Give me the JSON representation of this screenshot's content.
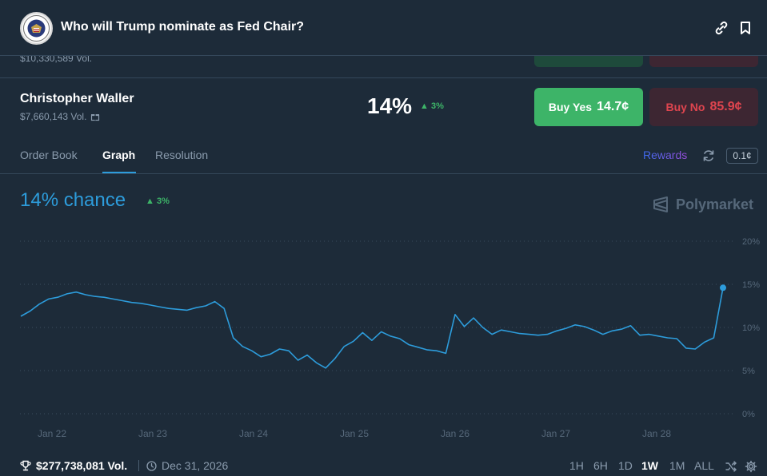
{
  "header": {
    "title": "Who will Trump nominate as Fed Chair?"
  },
  "previous_row": {
    "volume": "$10,330,589 Vol."
  },
  "candidate": {
    "name": "Christopher Waller",
    "volume": "$7,660,143 Vol.",
    "percent": "14%",
    "change": "3%",
    "buy_yes_label": "Buy Yes",
    "buy_yes_price": "14.7¢",
    "buy_no_label": "Buy No",
    "buy_no_price": "85.9¢"
  },
  "tabs": [
    {
      "label": "Order Book",
      "active": false
    },
    {
      "label": "Graph",
      "active": true
    },
    {
      "label": "Resolution",
      "active": false
    }
  ],
  "rewards_label": "Rewards",
  "tick_size": "0.1¢",
  "chance": {
    "label": "14% chance",
    "change": "3%"
  },
  "brand": "Polymarket",
  "colors": {
    "accent": "#2d9cdb",
    "yes": "#3db468",
    "no": "#e0454f",
    "background": "#1d2b39"
  },
  "chart_data": {
    "type": "line",
    "x_ticks": [
      "Jan 22",
      "Jan 23",
      "Jan 24",
      "Jan 25",
      "Jan 26",
      "Jan 27",
      "Jan 28"
    ],
    "y_ticks": [
      "20%",
      "15%",
      "10%",
      "5%",
      "0%"
    ],
    "ylim": [
      0,
      20
    ],
    "grid": true,
    "series": [
      {
        "values": [
          11.3,
          11.9,
          12.7,
          13.3,
          13.5,
          13.9,
          14.1,
          13.8,
          13.6,
          13.5,
          13.3,
          13.1,
          12.9,
          12.8,
          12.6,
          12.4,
          12.2,
          12.1,
          12.0,
          12.3,
          12.5,
          13.0,
          12.2,
          8.8,
          7.8,
          7.3,
          6.6,
          6.9,
          7.5,
          7.3,
          6.2,
          6.8,
          5.9,
          5.3,
          6.4,
          7.8,
          8.4,
          9.4,
          8.5,
          9.5,
          9.0,
          8.7,
          8.0,
          7.7,
          7.4,
          7.3,
          7.0,
          11.5,
          10.1,
          11.1,
          10.0,
          9.2,
          9.7,
          9.5,
          9.3,
          9.2,
          9.1,
          9.2,
          9.6,
          9.9,
          10.3,
          10.1,
          9.7,
          9.2,
          9.6,
          9.8,
          10.2,
          9.1,
          9.2,
          9.0,
          8.8,
          8.7,
          7.6,
          7.5,
          8.3,
          8.8,
          14.6
        ]
      }
    ]
  },
  "footer": {
    "volume": "$277,738,081 Vol.",
    "end_date": "Dec 31, 2026",
    "ranges": [
      {
        "label": "1H",
        "active": false
      },
      {
        "label": "6H",
        "active": false
      },
      {
        "label": "1D",
        "active": false
      },
      {
        "label": "1W",
        "active": true
      },
      {
        "label": "1M",
        "active": false
      },
      {
        "label": "ALL",
        "active": false
      }
    ]
  }
}
